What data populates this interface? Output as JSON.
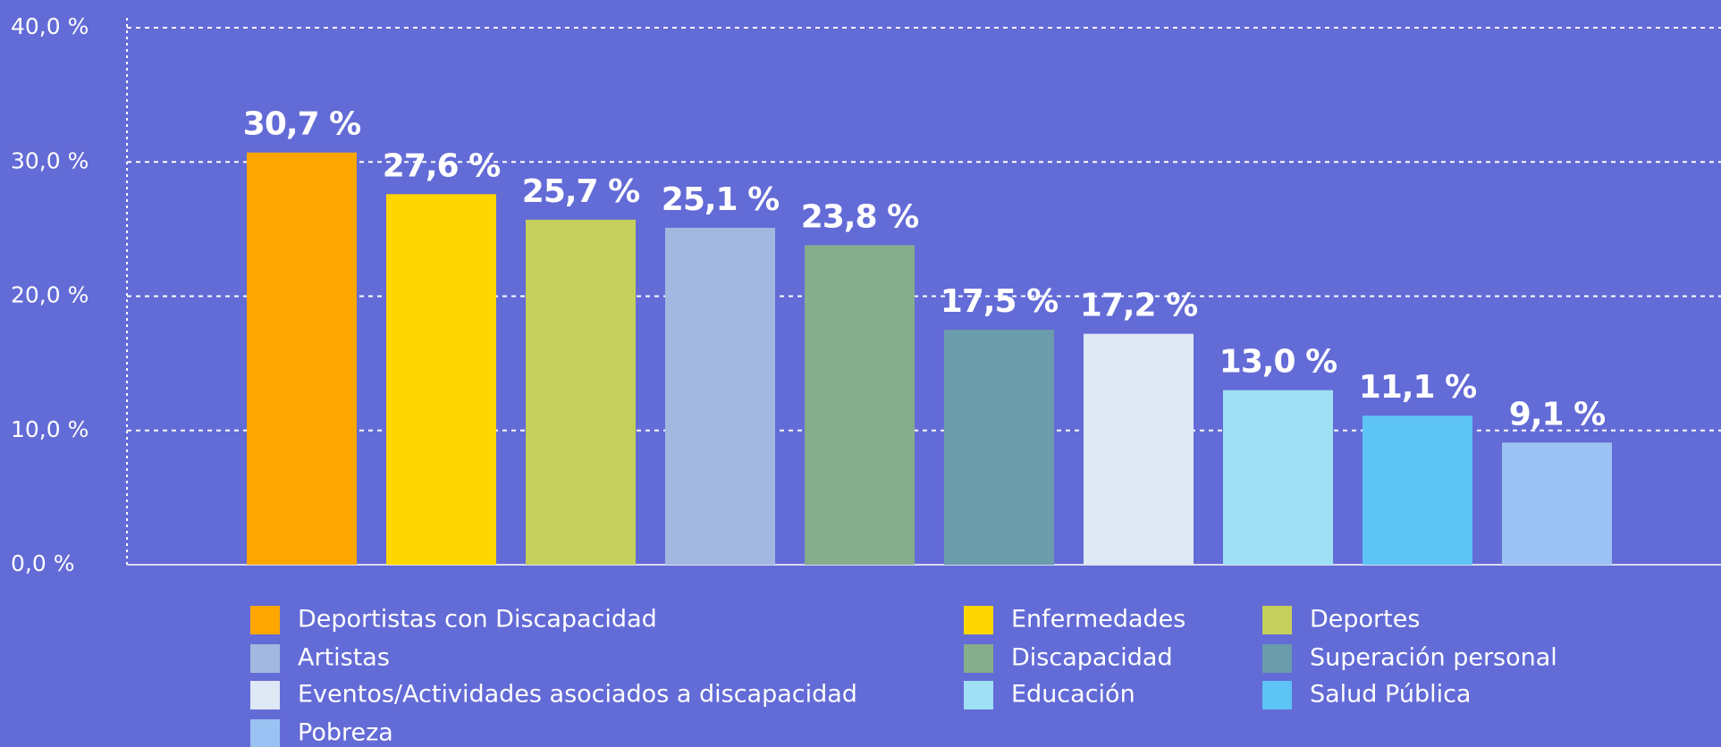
{
  "chart_data": {
    "type": "bar",
    "categories": [
      "Deportistas con Discapacidad",
      "Enfermedades",
      "Deportes",
      "Artistas",
      "Discapacidad",
      "Superación personal",
      "Eventos/Actividades asociados a discapacidad",
      "Educación",
      "Salud Pública",
      "Pobreza"
    ],
    "values": [
      30.7,
      27.6,
      25.7,
      25.1,
      23.8,
      17.5,
      17.2,
      13.0,
      11.1,
      9.1
    ],
    "value_labels": [
      "30,7 %",
      "27,6 %",
      "25,7 %",
      "25,1 %",
      "23,8 %",
      "17,5 %",
      "17,2 %",
      "13,0 %",
      "11,1 %",
      "9,1 %"
    ],
    "colors": [
      "#ffa600",
      "#ffd600",
      "#c5cf5c",
      "#a3b8e0",
      "#86ad8c",
      "#6a9cac",
      "#dfe8f5",
      "#9fe0f5",
      "#5ec3f5",
      "#9bc2f2"
    ],
    "ylim": [
      0,
      40
    ],
    "yticks": [
      {
        "value": 0,
        "label": "0,0 %"
      },
      {
        "value": 10,
        "label": "10,0 %"
      },
      {
        "value": 20,
        "label": "20,0 %"
      },
      {
        "value": 30,
        "label": "30,0 %"
      },
      {
        "value": 40,
        "label": "40,0 %"
      }
    ],
    "grid": true,
    "legend": "bottom"
  }
}
